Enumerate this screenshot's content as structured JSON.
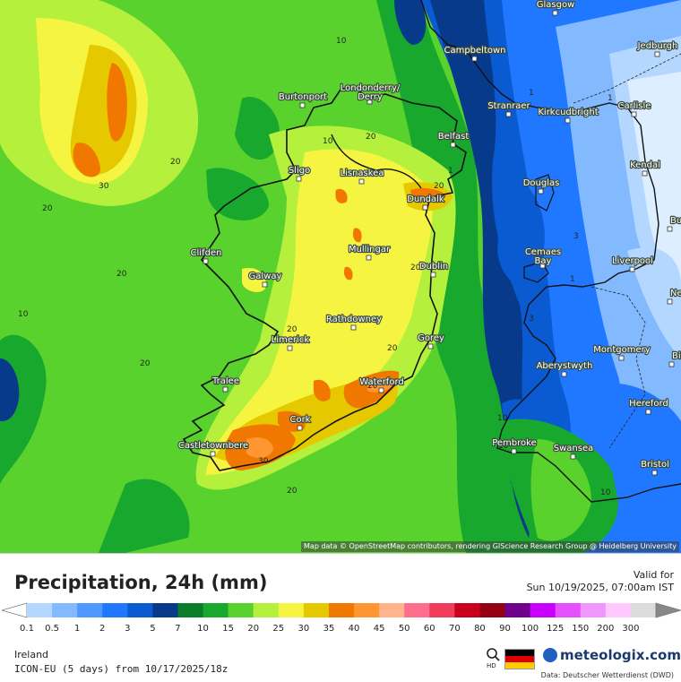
{
  "map": {
    "attribution": "Map data © OpenStreetMap contributors, rendering GIScience Research Group @ Heidelberg University",
    "cities": [
      {
        "name": "Glasgow"
      },
      {
        "name": "Campbeltown"
      },
      {
        "name": "Jedburgh"
      },
      {
        "name": "Burtonport"
      },
      {
        "name": "Londonderry/ Derry"
      },
      {
        "name": "Stranraer"
      },
      {
        "name": "Kirkcudbright"
      },
      {
        "name": "Carlisle"
      },
      {
        "name": "Belfast"
      },
      {
        "name": "Sligo"
      },
      {
        "name": "Lisnaskea"
      },
      {
        "name": "Kendal"
      },
      {
        "name": "Dundalk"
      },
      {
        "name": "Douglas"
      },
      {
        "name": "Mullingar"
      },
      {
        "name": "Clifden"
      },
      {
        "name": "Dublin"
      },
      {
        "name": "Cemaes Bay"
      },
      {
        "name": "Liverpool"
      },
      {
        "name": "Galway"
      },
      {
        "name": "Newcastle-under-Lyme"
      },
      {
        "name": "Rathdowney"
      },
      {
        "name": "Limerick"
      },
      {
        "name": "Gorey"
      },
      {
        "name": "Aberystwyth"
      },
      {
        "name": "Montgomery"
      },
      {
        "name": "Tralee"
      },
      {
        "name": "Waterford"
      },
      {
        "name": "Hereford"
      },
      {
        "name": "Cork"
      },
      {
        "name": "Castletownbere"
      },
      {
        "name": "Pembroke"
      },
      {
        "name": "Swansea"
      },
      {
        "name": "Bristol"
      },
      {
        "name": "Burnley"
      },
      {
        "name": "Birmingham"
      }
    ],
    "contour_labels": [
      "10",
      "20",
      "30",
      "20",
      "20",
      "20",
      "10",
      "1",
      "10",
      "20",
      "20",
      "30",
      "20",
      "20",
      "20",
      "20",
      "20",
      "10",
      "1",
      "3",
      "1",
      "3",
      "10",
      "10",
      "1"
    ]
  },
  "legend": {
    "title": "Precipitation, 24h (mm)",
    "valid_label": "Valid for",
    "valid_time": "Sun 10/19/2025, 07:00am IST",
    "ticks": [
      "0.1",
      "0.5",
      "1",
      "2",
      "3",
      "5",
      "7",
      "10",
      "15",
      "20",
      "25",
      "30",
      "35",
      "40",
      "45",
      "50",
      "60",
      "70",
      "80",
      "90",
      "100",
      "125",
      "150",
      "200",
      "300"
    ],
    "colors": [
      "#b4d7ff",
      "#82b9ff",
      "#4f98ff",
      "#1f78ff",
      "#0a5ad2",
      "#083a8c",
      "#0a7d28",
      "#18a82d",
      "#5ad22d",
      "#b4f03c",
      "#f5f541",
      "#e6c800",
      "#f07800",
      "#ff9632",
      "#ffb48c",
      "#ff6e8c",
      "#f03c5a",
      "#c8001e",
      "#960014",
      "#6e008c",
      "#c800ff",
      "#e650ff",
      "#f096ff",
      "#ffc8ff",
      "#dcdcdc"
    ],
    "region": "Ireland",
    "model": "ICON-EU (5 days) from 10/17/2025/18z",
    "brand": "meteologix.com",
    "hd_label": "HD",
    "source": "Data: Deutscher Wetterdienst (DWD)"
  }
}
